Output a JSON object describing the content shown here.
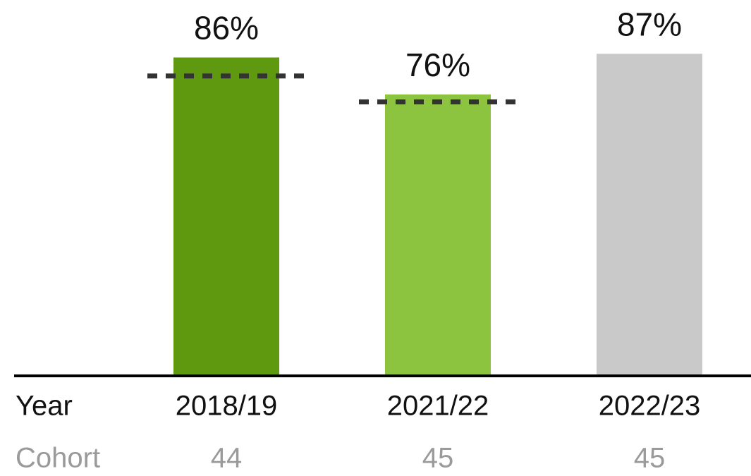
{
  "chart_data": {
    "type": "bar",
    "categories": [
      "2018/19",
      "2021/22",
      "2022/23"
    ],
    "values": [
      86,
      76,
      87
    ],
    "value_labels": [
      "86%",
      "76%",
      "87%"
    ],
    "colors": [
      "#5e990f",
      "#8dc43f",
      "#c9c9c9"
    ],
    "benchmarks": [
      81,
      74,
      null
    ],
    "x_label": "Year",
    "cohort_label": "Cohort",
    "cohort": [
      44,
      45,
      45
    ]
  }
}
